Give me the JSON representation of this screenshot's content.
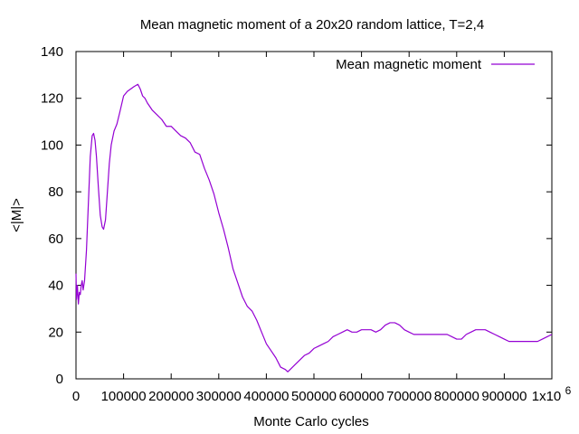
{
  "chart_data": {
    "type": "line",
    "title": "Mean magnetic moment of a 20x20 random lattice, T=2,4",
    "xlabel": "Monte Carlo cycles",
    "ylabel": "<|M|>",
    "xlim": [
      0,
      1000000
    ],
    "ylim": [
      0,
      140
    ],
    "x_ticks": [
      0,
      100000,
      200000,
      300000,
      400000,
      500000,
      600000,
      700000,
      800000,
      900000,
      1000000
    ],
    "x_tick_labels": [
      "0",
      "100000",
      "200000",
      "300000",
      "400000",
      "500000",
      "600000",
      "700000",
      "800000",
      "900000",
      "1x10"
    ],
    "x_tick_last_exponent": "6",
    "y_ticks": [
      0,
      20,
      40,
      60,
      80,
      100,
      120,
      140
    ],
    "y_tick_labels": [
      "0",
      "20",
      "40",
      "60",
      "80",
      "100",
      "120",
      "140"
    ],
    "grid": false,
    "legend": {
      "placement": "top-right"
    },
    "colors": {
      "series": "#9400d3",
      "axes": "#000000"
    },
    "series": [
      {
        "name": "Mean magnetic moment",
        "x": [
          0,
          1000,
          3000,
          5000,
          7000,
          9000,
          11000,
          13000,
          15000,
          18000,
          22000,
          26000,
          30000,
          34000,
          37000,
          40000,
          43000,
          47000,
          51000,
          55000,
          58000,
          62000,
          66000,
          70000,
          74000,
          80000,
          86000,
          92000,
          100000,
          108000,
          115000,
          122000,
          130000,
          135000,
          140000,
          145000,
          150000,
          160000,
          170000,
          180000,
          190000,
          200000,
          210000,
          220000,
          230000,
          240000,
          250000,
          260000,
          270000,
          280000,
          290000,
          300000,
          310000,
          320000,
          330000,
          340000,
          350000,
          360000,
          370000,
          380000,
          390000,
          400000,
          410000,
          420000,
          430000,
          440000,
          445000,
          450000,
          460000,
          470000,
          480000,
          490000,
          500000,
          510000,
          520000,
          530000,
          540000,
          550000,
          560000,
          570000,
          580000,
          590000,
          600000,
          610000,
          620000,
          630000,
          640000,
          650000,
          660000,
          670000,
          680000,
          690000,
          700000,
          710000,
          720000,
          730000,
          740000,
          750000,
          760000,
          770000,
          780000,
          790000,
          800000,
          810000,
          820000,
          830000,
          840000,
          850000,
          860000,
          870000,
          880000,
          890000,
          900000,
          910000,
          920000,
          930000,
          940000,
          950000,
          960000,
          970000,
          980000,
          990000,
          1000000
        ],
        "values": [
          45,
          34,
          40,
          32,
          37,
          36,
          40,
          42,
          38,
          42,
          55,
          75,
          95,
          104,
          105,
          102,
          95,
          82,
          70,
          65,
          64,
          68,
          80,
          92,
          100,
          106,
          109,
          114,
          121,
          123,
          124,
          125,
          126,
          124,
          121,
          120,
          118,
          115,
          113,
          111,
          108,
          108,
          106,
          104,
          103,
          101,
          97,
          96,
          90,
          85,
          79,
          71,
          64,
          56,
          47,
          41,
          35,
          31,
          29,
          25,
          20,
          15,
          12,
          9,
          5,
          4,
          3,
          4,
          6,
          8,
          10,
          11,
          13,
          14,
          15,
          16,
          18,
          19,
          20,
          21,
          20,
          20,
          21,
          21,
          21,
          20,
          21,
          23,
          24,
          24,
          23,
          21,
          20,
          19,
          19,
          19,
          19,
          19,
          19,
          19,
          19,
          18,
          17,
          17,
          19,
          20,
          21,
          21,
          21,
          20,
          19,
          18,
          17,
          16,
          16,
          16,
          16,
          16,
          16,
          16,
          17,
          18,
          19
        ]
      }
    ]
  }
}
